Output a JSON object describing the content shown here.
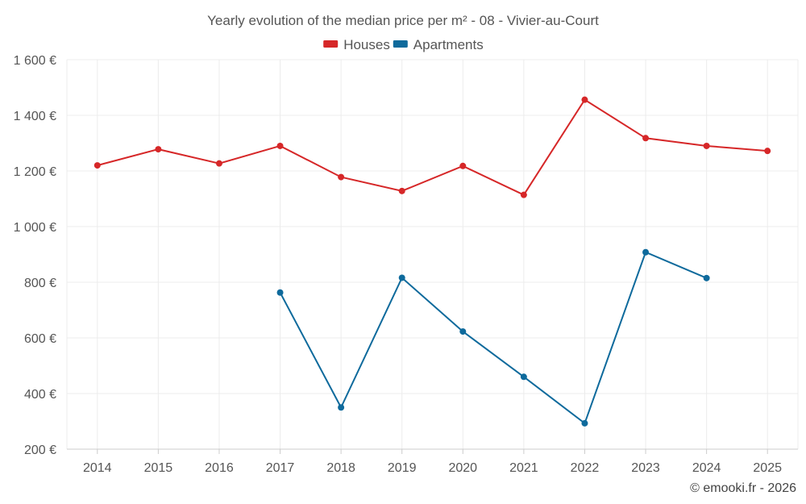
{
  "chart_data": {
    "type": "line",
    "title": "Yearly evolution of the median price per m² - 08 - Vivier-au-Court",
    "xlabel": "",
    "ylabel": "",
    "categories": [
      "2014",
      "2015",
      "2016",
      "2017",
      "2018",
      "2019",
      "2020",
      "2021",
      "2022",
      "2023",
      "2024",
      "2025"
    ],
    "ylim": [
      200,
      1600
    ],
    "yticks": [
      200,
      400,
      600,
      800,
      1000,
      1200,
      1400,
      1600
    ],
    "ytick_labels": [
      "200 €",
      "400 €",
      "600 €",
      "800 €",
      "1 000 €",
      "1 200 €",
      "1 400 €",
      "1 600 €"
    ],
    "grid": true,
    "legend_position": "top-center",
    "series": [
      {
        "name": "Houses",
        "color": "#d62728",
        "values": [
          1220,
          1278,
          1227,
          1290,
          1178,
          1128,
          1218,
          1114,
          1456,
          1318,
          1290,
          1272
        ]
      },
      {
        "name": "Apartments",
        "color": "#0e6a9c",
        "values": [
          null,
          null,
          null,
          763,
          350,
          816,
          623,
          460,
          293,
          908,
          815,
          null
        ]
      }
    ]
  },
  "credit": "© emooki.fr - 2026"
}
